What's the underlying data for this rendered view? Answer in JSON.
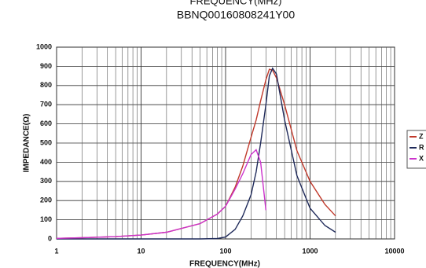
{
  "chart_data": {
    "type": "line",
    "top_caption": "FREQUENCY(MHz)",
    "title": "BBNQ00160808241Y00",
    "x_label": "FREQUENCY(MHz)",
    "y_label": "IMPEDANCE(Ω)",
    "x_log": true,
    "grid": true,
    "minor_grid": true,
    "legend": "right",
    "x": [
      1,
      2,
      5,
      10,
      20,
      50,
      80,
      100,
      130,
      160,
      200,
      230,
      260,
      300,
      330,
      360,
      400,
      500,
      700,
      1000,
      1500,
      2000
    ],
    "series": [
      {
        "name": "Z",
        "color": "#c0392b",
        "values": [
          3,
          6,
          12,
          20,
          35,
          80,
          130,
          170,
          270,
          380,
          530,
          620,
          720,
          830,
          885,
          880,
          840,
          700,
          460,
          300,
          180,
          120
        ]
      },
      {
        "name": "R",
        "color": "#1f2a5a",
        "values": [
          0,
          0,
          0,
          0,
          0,
          0,
          2,
          10,
          50,
          120,
          230,
          350,
          500,
          700,
          850,
          890,
          860,
          620,
          330,
          160,
          70,
          35
        ]
      },
      {
        "name": "X",
        "color": "#cc33cc",
        "values": [
          3,
          6,
          12,
          20,
          35,
          80,
          130,
          170,
          260,
          340,
          440,
          465,
          400,
          150,
          null,
          null,
          null,
          null,
          null,
          null,
          null,
          null
        ]
      }
    ],
    "xlim": [
      1,
      10000
    ],
    "xticks": [
      1,
      10,
      100,
      1000,
      10000
    ],
    "ylim": [
      0,
      1000
    ],
    "yticks": [
      0,
      100,
      200,
      300,
      400,
      500,
      600,
      700,
      800,
      900,
      1000
    ]
  }
}
